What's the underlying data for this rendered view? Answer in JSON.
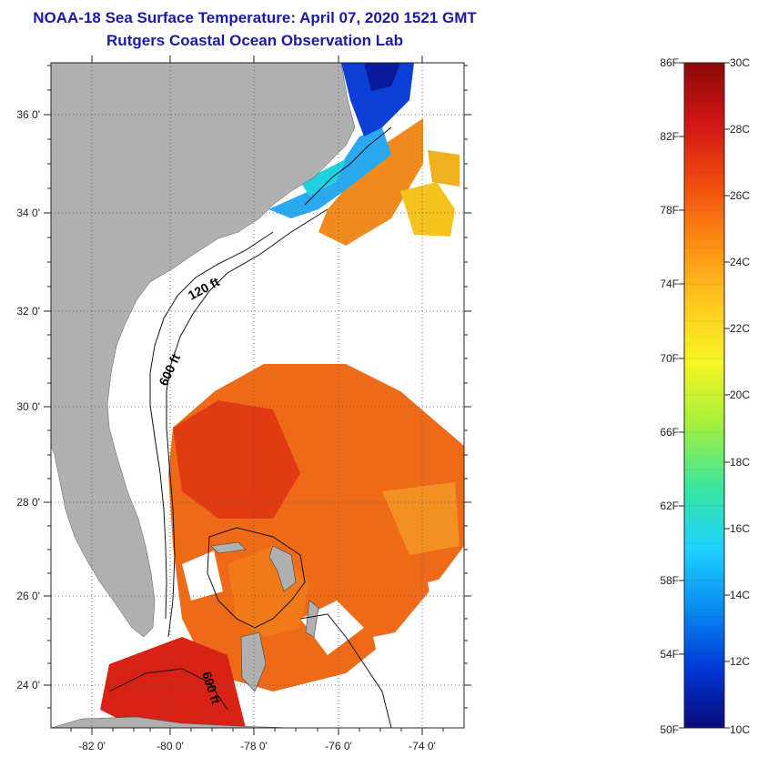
{
  "header": {
    "title": "NOAA-18 Sea Surface Temperature:  April 07, 2020 1521 GMT",
    "subtitle": "Rutgers Coastal Ocean Observation Lab"
  },
  "map": {
    "lon_range": [
      -83,
      -73
    ],
    "lat_range": [
      23,
      37
    ],
    "lon_ticks": [
      {
        "value": -82,
        "label": "-82 0'"
      },
      {
        "value": -80,
        "label": "-80 0'"
      },
      {
        "value": -78,
        "label": "-78 0'"
      },
      {
        "value": -76,
        "label": "-76 0'"
      },
      {
        "value": -74,
        "label": "-74 0'"
      }
    ],
    "lat_ticks": [
      {
        "value": 36,
        "label": "36 0'"
      },
      {
        "value": 34,
        "label": "34 0'"
      },
      {
        "value": 32,
        "label": "32 0'"
      },
      {
        "value": 30,
        "label": "30 0'"
      },
      {
        "value": 28,
        "label": "28 0'"
      },
      {
        "value": 26,
        "label": "26 0'"
      },
      {
        "value": 24,
        "label": "24 0'"
      }
    ],
    "contour_labels": [
      {
        "text": "120 ft"
      },
      {
        "text": "600 ft"
      },
      {
        "text": "600 ft"
      }
    ],
    "land_color": "#b0b0b0",
    "grid": true
  },
  "colorbar": {
    "fahrenheit_labels": [
      "86F",
      "82F",
      "78F",
      "74F",
      "70F",
      "66F",
      "62F",
      "58F",
      "54F",
      "50F"
    ],
    "celsius_labels": [
      "30C",
      "28C",
      "26C",
      "24C",
      "22C",
      "20C",
      "18C",
      "16C",
      "14C",
      "12C",
      "10C"
    ],
    "range_f": [
      50,
      86
    ],
    "range_c": [
      10,
      30
    ],
    "colors": [
      "#0a0a7a",
      "#0038d8",
      "#0a8cf0",
      "#1ed2ff",
      "#38e6a0",
      "#a8f03a",
      "#f5f523",
      "#ffc81e",
      "#ff8c14",
      "#f04b0f",
      "#d21414",
      "#8c0a0a"
    ]
  }
}
